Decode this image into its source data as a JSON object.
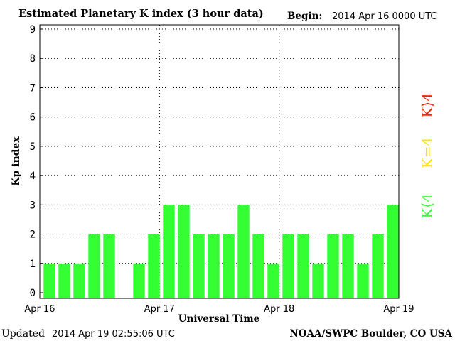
{
  "header": {
    "title": "Estimated Planetary K index (3 hour data)",
    "begin_label": "Begin:",
    "begin_value": "2014 Apr 16 0000 UTC"
  },
  "footer": {
    "updated_label": "Updated",
    "updated_value": "2014 Apr 19 02:55:06 UTC",
    "source": "NOAA/SWPC Boulder, CO USA"
  },
  "legend": {
    "items": [
      {
        "label": "K⟨4",
        "color": "#33ff33"
      },
      {
        "label": "K=4",
        "color": "#ffdd00"
      },
      {
        "label": "K⟩4",
        "color": "#ff2200"
      }
    ]
  },
  "chart_data": {
    "type": "bar",
    "xlabel": "Universal Time",
    "ylabel": "Kp index",
    "ylim": [
      0,
      9
    ],
    "yticks": [
      0,
      1,
      2,
      3,
      4,
      5,
      6,
      7,
      8,
      9
    ],
    "xticks": [
      "Apr 16",
      "Apr 17",
      "Apr 18",
      "Apr 19"
    ],
    "bar_color": "#33ff33",
    "grid": "dotted",
    "values": [
      1,
      1,
      1,
      2,
      2,
      0,
      1,
      2,
      3,
      3,
      2,
      2,
      2,
      3,
      2,
      1,
      2,
      2,
      1,
      2,
      2,
      1,
      2,
      3
    ]
  }
}
